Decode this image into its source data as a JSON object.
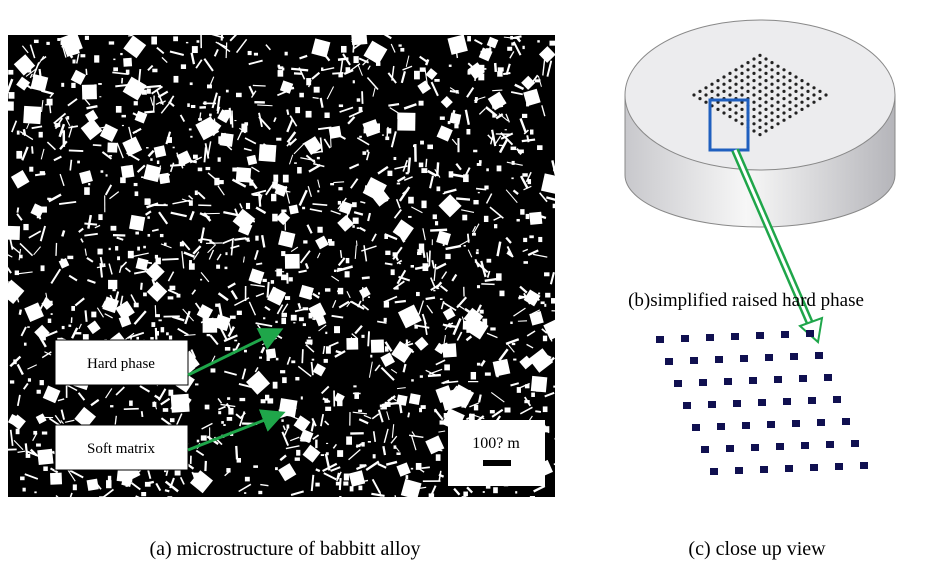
{
  "labels": {
    "hard_phase": "Hard phase",
    "soft_matrix": "Soft matrix",
    "scale_bar": "100? m"
  },
  "captions": {
    "b": "(b)simplified raised hard phase",
    "a": "(a) microstructure of babbitt alloy",
    "c": "(c) close up view"
  }
}
